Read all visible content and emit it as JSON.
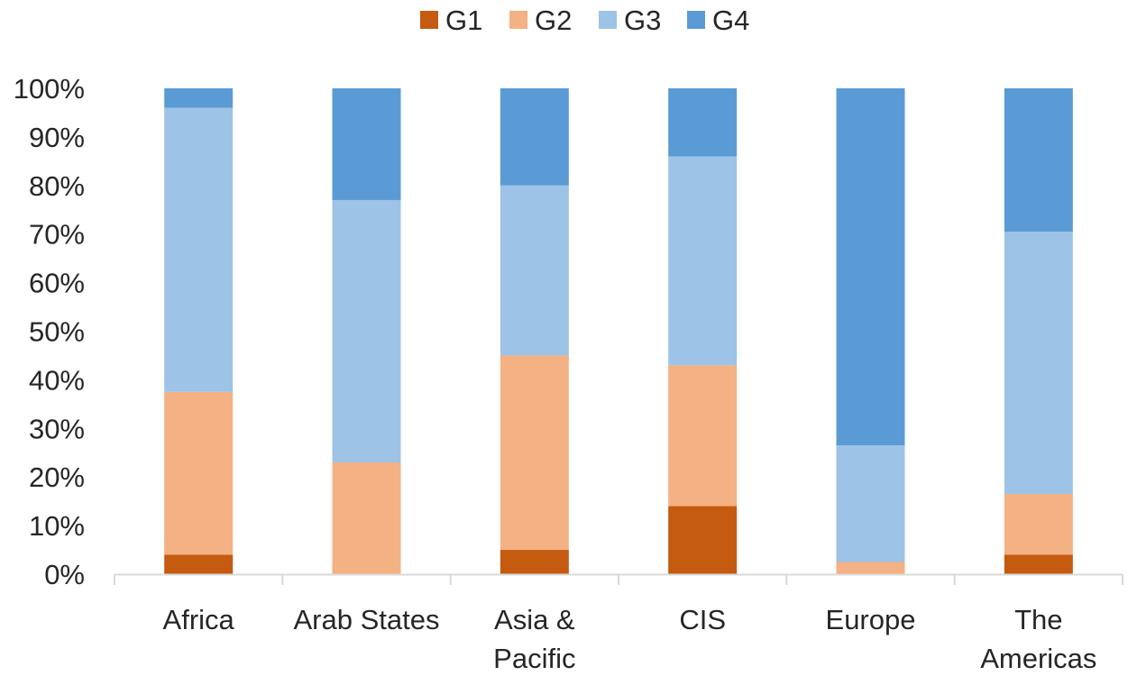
{
  "chart_data": {
    "type": "bar",
    "stacked": true,
    "percent_stacked": true,
    "title": "",
    "xlabel": "",
    "ylabel": "",
    "ylim": [
      0,
      100
    ],
    "y_ticks": [
      "0%",
      "10%",
      "20%",
      "30%",
      "40%",
      "50%",
      "60%",
      "70%",
      "80%",
      "90%",
      "100%"
    ],
    "grid": false,
    "legend_position": "top",
    "categories": [
      [
        "Africa"
      ],
      [
        "Arab States"
      ],
      [
        "Asia &",
        "Pacific"
      ],
      [
        "CIS"
      ],
      [
        "Europe"
      ],
      [
        "The",
        "Americas"
      ]
    ],
    "series": [
      {
        "name": "G1",
        "color": "#C55A11",
        "values": [
          4,
          0,
          5,
          14,
          0,
          4
        ]
      },
      {
        "name": "G2",
        "color": "#F4B183",
        "values": [
          33.5,
          23,
          40,
          29,
          2.5,
          12.5
        ]
      },
      {
        "name": "G3",
        "color": "#9DC3E6",
        "values": [
          58.5,
          54,
          35,
          43,
          24,
          54
        ]
      },
      {
        "name": "G4",
        "color": "#5B9BD5",
        "values": [
          4,
          23,
          20,
          14,
          73.5,
          29.5
        ]
      }
    ]
  }
}
